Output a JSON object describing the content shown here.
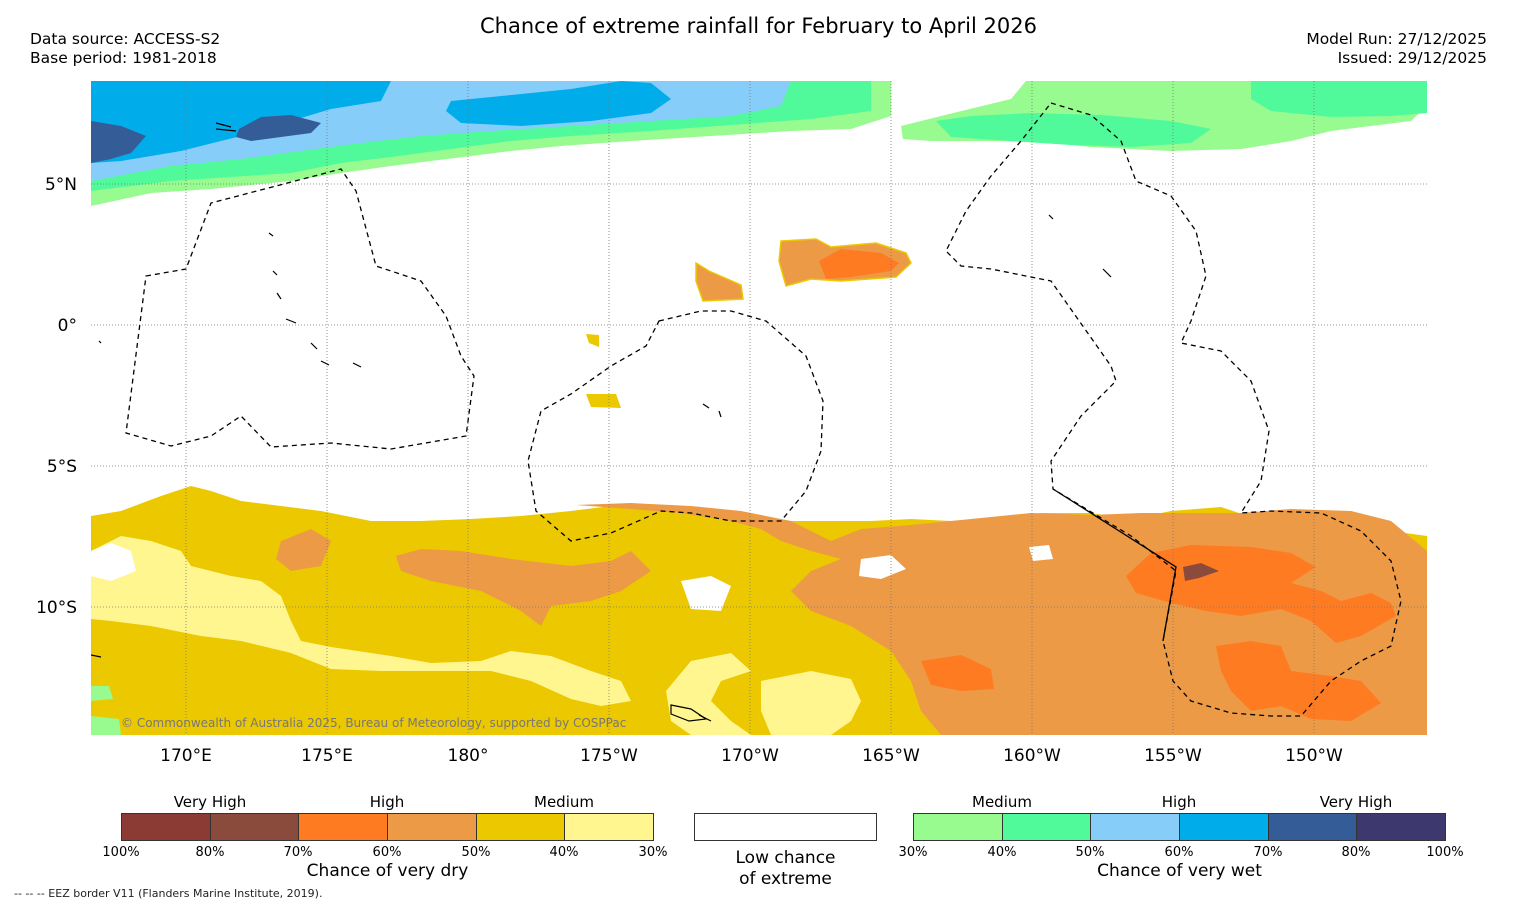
{
  "title": "Chance of extreme rainfall for February to April 2026",
  "meta_left": {
    "line1": "Data source: ACCESS-S2",
    "line2": "Base period: 1981-2018"
  },
  "meta_right": {
    "line1": "Model Run: 27/12/2025",
    "line2": "Issued: 29/12/2025"
  },
  "map": {
    "lat_labels": [
      "5°N",
      "0°",
      "5°S",
      "10°S"
    ],
    "lon_labels": [
      "170°E",
      "175°E",
      "180°",
      "175°W",
      "170°W",
      "165°W",
      "160°W",
      "155°W",
      "150°W"
    ],
    "copyright": "© Commonwealth of Australia 2025, Bureau of Meteorology, supported by COSPPac"
  },
  "legend_dry": {
    "title": "Chance of very dry",
    "levels": [
      "Very High",
      "High",
      "Medium"
    ],
    "ticks": [
      "100%",
      "80%",
      "70%",
      "60%",
      "50%",
      "40%",
      "30%"
    ],
    "colors": [
      "#8b3a34",
      "#8b4b3c",
      "#ff7b22",
      "#ec9a46",
      "#ecc800",
      "#fff68f"
    ]
  },
  "legend_low": {
    "line1": "Low chance",
    "line2": "of extreme"
  },
  "legend_wet": {
    "title": "Chance of very wet",
    "levels": [
      "Medium",
      "High",
      "Very High"
    ],
    "ticks": [
      "30%",
      "40%",
      "50%",
      "60%",
      "70%",
      "80%",
      "100%"
    ],
    "colors": [
      "#98fb8f",
      "#50fa9b",
      "#87cdfa",
      "#00adea",
      "#345c96",
      "#3d386e"
    ]
  },
  "footnote": "--  --  -- EEZ border V11 (Flanders Marine Institute, 2019)."
}
